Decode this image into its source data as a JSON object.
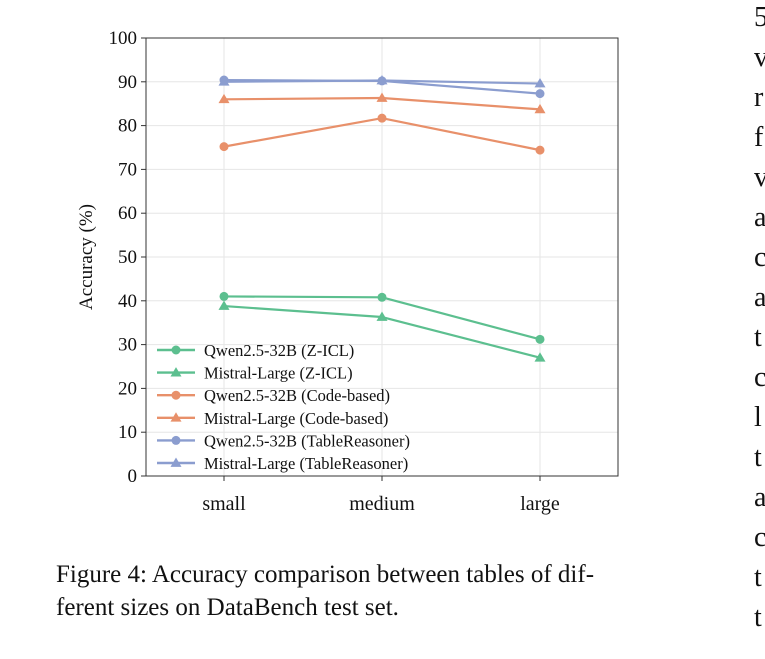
{
  "chart_data": {
    "type": "line",
    "title": "",
    "xlabel": "",
    "ylabel": "Accuracy (%)",
    "categories": [
      "small",
      "medium",
      "large"
    ],
    "ylim": [
      0,
      100
    ],
    "yticks": [
      0,
      10,
      20,
      30,
      40,
      50,
      60,
      70,
      80,
      90,
      100
    ],
    "grid": true,
    "legend_position": "lower-left",
    "series": [
      {
        "name": "Qwen2.5-32B (Z-ICL)",
        "values": [
          41.0,
          40.8,
          31.2
        ],
        "color": "#5cbf8f",
        "marker": "circle"
      },
      {
        "name": "Mistral-Large (Z-ICL)",
        "values": [
          38.8,
          36.3,
          27.0
        ],
        "color": "#5cbf8f",
        "marker": "triangle"
      },
      {
        "name": "Qwen2.5-32B (Code-based)",
        "values": [
          75.2,
          81.7,
          74.4
        ],
        "color": "#e8906a",
        "marker": "circle"
      },
      {
        "name": "Mistral-Large (Code-based)",
        "values": [
          86.0,
          86.3,
          83.7
        ],
        "color": "#e8906a",
        "marker": "triangle"
      },
      {
        "name": "Qwen2.5-32B (TableReasoner)",
        "values": [
          90.4,
          90.2,
          87.3
        ],
        "color": "#8b9dcf",
        "marker": "circle"
      },
      {
        "name": "Mistral-Large (TableReasoner)",
        "values": [
          90.0,
          90.3,
          89.6
        ],
        "color": "#8b9dcf",
        "marker": "triangle"
      }
    ]
  },
  "caption": {
    "line1": "Figure 4: Accuracy comparison between tables of dif-",
    "line2": "ferent sizes on DataBench test set."
  },
  "side_text": [
    "5",
    "v",
    "r",
    "f",
    "v",
    "a",
    "c",
    "a",
    "t",
    "c",
    "l",
    "t",
    "a",
    "c",
    "t",
    "t"
  ]
}
